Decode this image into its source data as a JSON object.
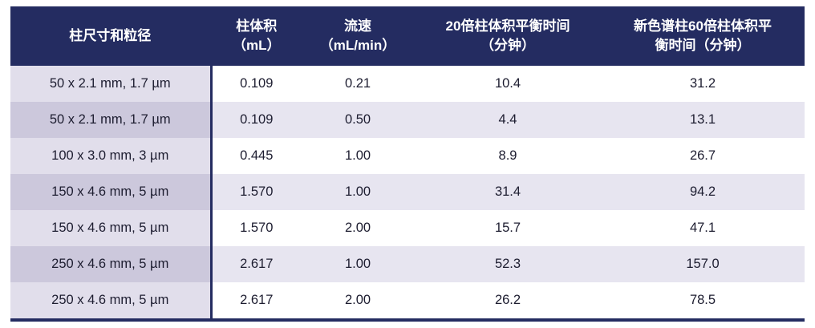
{
  "table": {
    "headers": [
      "柱尺寸和粒径",
      "柱体积\n（mL）",
      "流速\n（mL/min）",
      "20倍柱体积平衡时间\n（分钟）",
      "新色谱柱60倍柱体积平\n衡时间（分钟）"
    ],
    "rows": [
      [
        "50 x 2.1 mm, 1.7 µm",
        "0.109",
        "0.21",
        "10.4",
        "31.2"
      ],
      [
        "50 x 2.1 mm, 1.7 µm",
        "0.109",
        "0.50",
        "4.4",
        "13.1"
      ],
      [
        "100 x 3.0 mm, 3 µm",
        "0.445",
        "1.00",
        "8.9",
        "26.7"
      ],
      [
        "150 x 4.6 mm, 5 µm",
        "1.570",
        "1.00",
        "31.4",
        "94.2"
      ],
      [
        "150 x 4.6 mm, 5 µm",
        "1.570",
        "2.00",
        "15.7",
        "47.1"
      ],
      [
        "250 x 4.6 mm, 5 µm",
        "2.617",
        "1.00",
        "52.3",
        "157.0"
      ],
      [
        "250 x 4.6 mm, 5 µm",
        "2.617",
        "2.00",
        "26.2",
        "78.5"
      ]
    ]
  },
  "colors": {
    "header_bg": "#242c61",
    "row_alt": "#e7e5f0",
    "firstcol": "#e1deeb",
    "firstcol_alt": "#ccc8dc",
    "body_text": "#1d1d30"
  }
}
